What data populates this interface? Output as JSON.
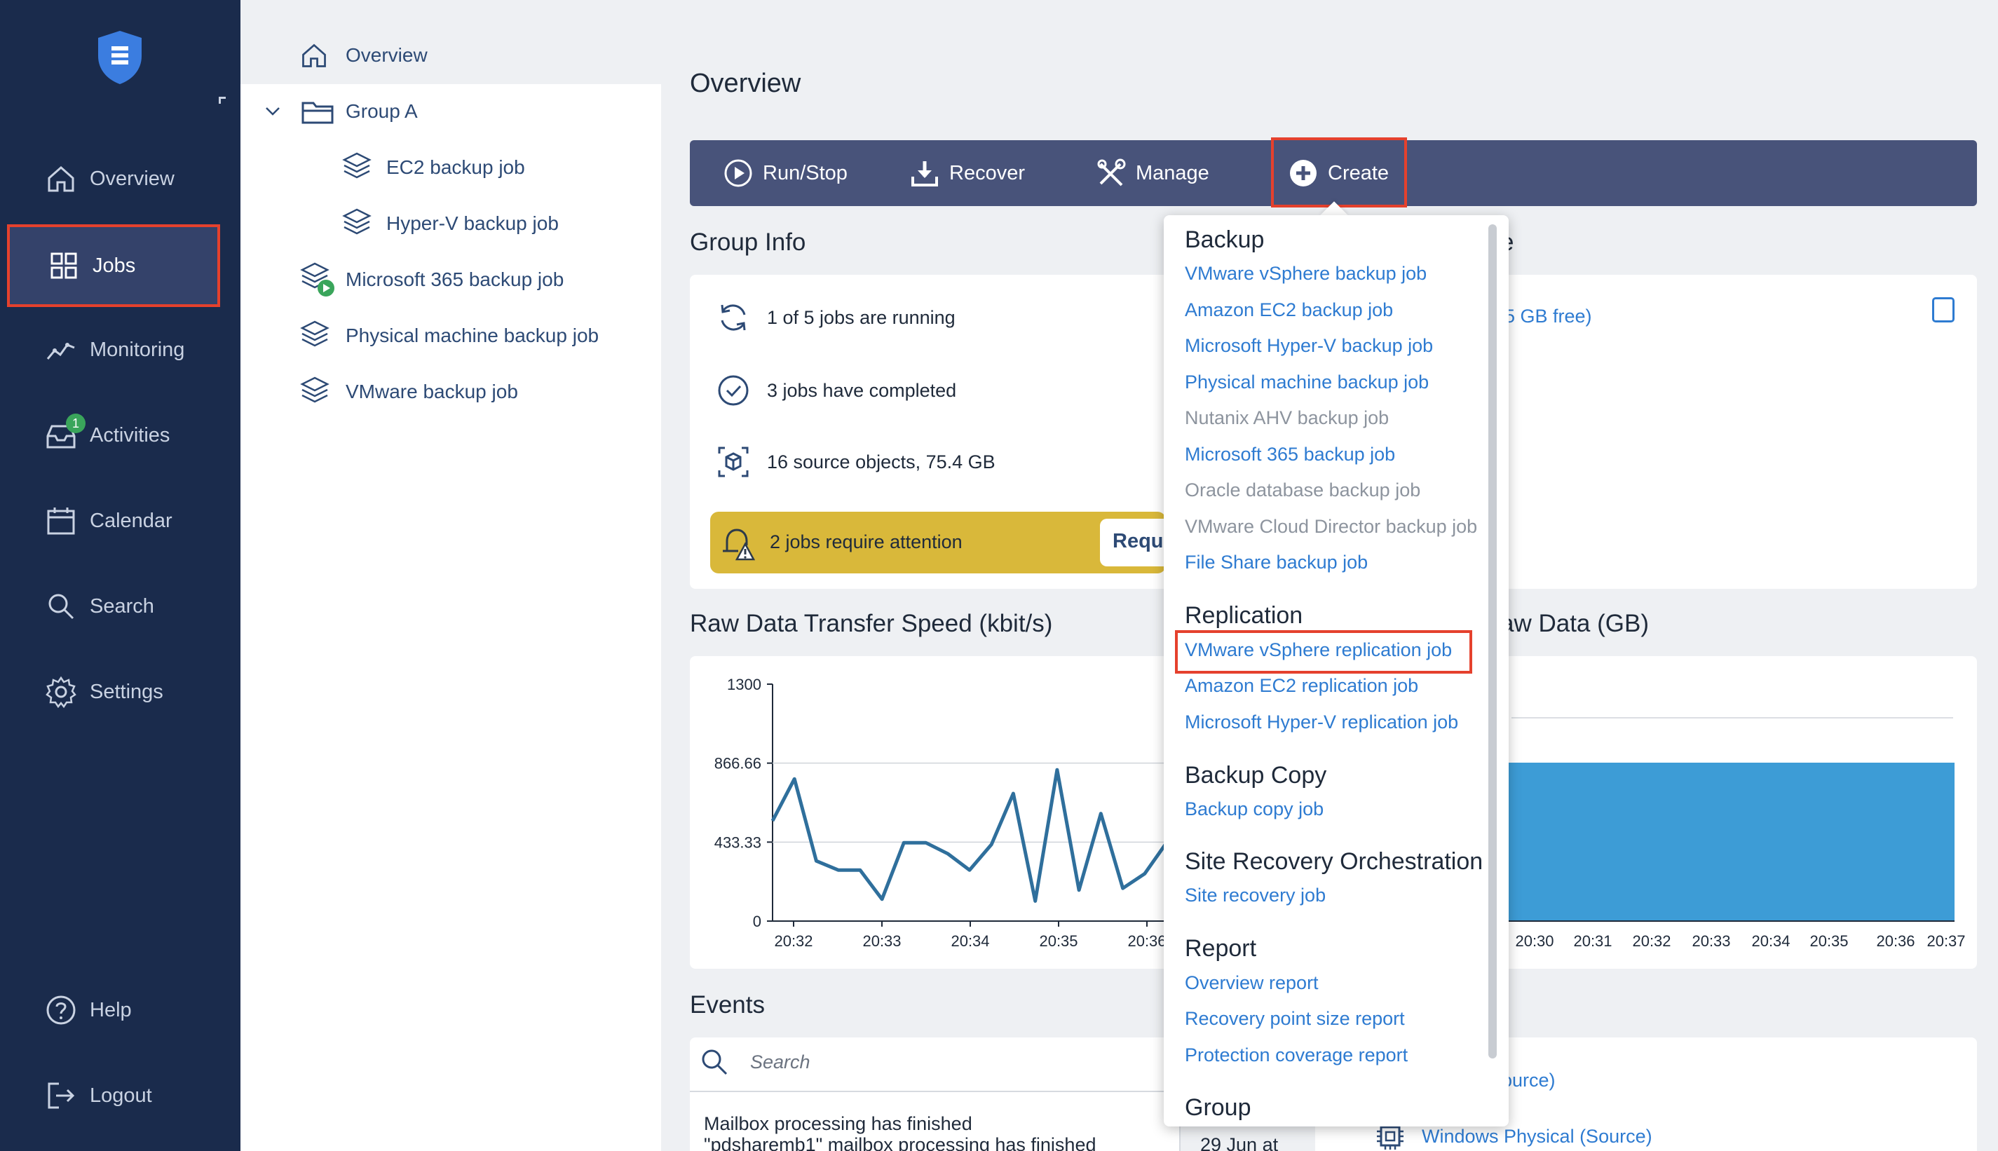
{
  "nav": {
    "items": [
      {
        "label": "Overview",
        "icon": "home-icon"
      },
      {
        "label": "Jobs",
        "icon": "grid-icon"
      },
      {
        "label": "Monitoring",
        "icon": "monitoring-icon"
      },
      {
        "label": "Activities",
        "icon": "inbox-icon",
        "badge": "1"
      },
      {
        "label": "Calendar",
        "icon": "calendar-icon"
      },
      {
        "label": "Search",
        "icon": "search-icon"
      },
      {
        "label": "Settings",
        "icon": "gear-icon"
      }
    ],
    "bottom": [
      {
        "label": "Help",
        "icon": "help-icon"
      },
      {
        "label": "Logout",
        "icon": "logout-icon"
      }
    ]
  },
  "tree": {
    "items": [
      {
        "label": "Overview"
      },
      {
        "label": "Group A"
      },
      {
        "label": "EC2 backup job"
      },
      {
        "label": "Hyper-V backup job"
      },
      {
        "label": "Microsoft 365 backup job"
      },
      {
        "label": "Physical machine backup job"
      },
      {
        "label": "VMware backup job"
      }
    ]
  },
  "main": {
    "title": "Overview",
    "toolbar": {
      "run_stop": "Run/Stop",
      "recover": "Recover",
      "manage": "Manage",
      "create": "Create"
    },
    "group_info": {
      "title": "Group Info",
      "running": "1 of 5 jobs are running",
      "completed": "3 jobs have completed",
      "source_objects": "16 source objects, 75.4 GB",
      "attention": "2 jobs require attention",
      "attention_button": "Requ"
    },
    "right_card": {
      "title_fragment": "e",
      "storage_fragment": "5 GB free)"
    },
    "transfer_chart_title": "Raw Data Transfer Speed (kbit/s)",
    "raw_data_title_fragment": "aw Data (GB)",
    "events": {
      "title": "Events",
      "search_placeholder": "Search",
      "row_title": "Mailbox processing has finished",
      "row_detail": "\"pdsharemb1\" mailbox processing has finished",
      "row_date": "29 Jun at"
    },
    "bottom_right": {
      "item1": "ource)",
      "item2": "Windows Physical (Source)"
    }
  },
  "chart_data": [
    {
      "type": "line",
      "title": "Raw Data Transfer Speed (kbit/s)",
      "ylim": [
        0,
        1300
      ],
      "yticks": [
        "1300",
        "866.66",
        "433.33",
        "0"
      ],
      "xticks": [
        "20:32",
        "20:33",
        "20:34",
        "20:35",
        "20:36"
      ],
      "series": [
        {
          "values": [
            550,
            780,
            330,
            280,
            280,
            120,
            430,
            430,
            370,
            280,
            420,
            700,
            110,
            830,
            170,
            590,
            180,
            260,
            430
          ]
        }
      ],
      "color": "#2f6f9c"
    },
    {
      "type": "area",
      "title": "aw Data (GB)",
      "xticks": [
        "20:30",
        "20:31",
        "20:32",
        "20:33",
        "20:34",
        "20:35",
        "20:36",
        "20:37"
      ],
      "color": "#3d9cd6"
    }
  ],
  "dropdown": {
    "sections": [
      {
        "heading": "Backup",
        "links": [
          {
            "label": "VMware vSphere backup job",
            "enabled": true
          },
          {
            "label": "Amazon EC2 backup job",
            "enabled": true
          },
          {
            "label": "Microsoft Hyper-V backup job",
            "enabled": true
          },
          {
            "label": "Physical machine backup job",
            "enabled": true
          },
          {
            "label": "Nutanix AHV backup job",
            "enabled": false
          },
          {
            "label": "Microsoft 365 backup job",
            "enabled": true
          },
          {
            "label": "Oracle database backup job",
            "enabled": false
          },
          {
            "label": "VMware Cloud Director backup job",
            "enabled": false
          },
          {
            "label": "File Share backup job",
            "enabled": true
          }
        ]
      },
      {
        "heading": "Replication",
        "links": [
          {
            "label": "VMware vSphere replication job",
            "enabled": true
          },
          {
            "label": "Amazon EC2 replication job",
            "enabled": true
          },
          {
            "label": "Microsoft Hyper-V replication job",
            "enabled": true
          }
        ]
      },
      {
        "heading": "Backup Copy",
        "links": [
          {
            "label": "Backup copy job",
            "enabled": true
          }
        ]
      },
      {
        "heading": "Site Recovery Orchestration",
        "links": [
          {
            "label": "Site recovery job",
            "enabled": true
          }
        ]
      },
      {
        "heading": "Report",
        "links": [
          {
            "label": "Overview report",
            "enabled": true
          },
          {
            "label": "Recovery point size report",
            "enabled": true
          },
          {
            "label": "Protection coverage report",
            "enabled": true
          }
        ]
      },
      {
        "heading": "Group",
        "links": []
      }
    ]
  },
  "colors": {
    "nav_bg": "#1a2b4c",
    "toolbar_bg": "#48537a",
    "link": "#2e7bd1",
    "highlight": "#e5412d",
    "attention": "#d9b83a"
  }
}
